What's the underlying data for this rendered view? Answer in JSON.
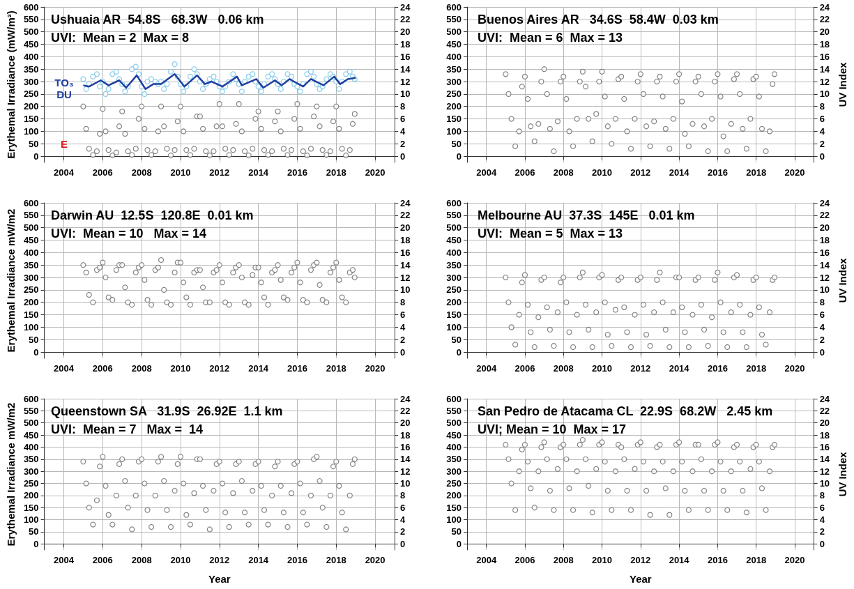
{
  "chart_data": [
    {
      "type": "scatter",
      "title": "Ushuaia AR  54.8S   68.3W   0.06 km",
      "subtitle": "UVI:  Mean = 2  Max = 8",
      "ylabel": "Erythemal Irradiance (mW/m²)",
      "annotations": [
        "TO₃",
        "DU",
        "E"
      ],
      "xlim": [
        2003,
        2021
      ],
      "xticks": [
        2004,
        2006,
        2008,
        2010,
        2012,
        2014,
        2016,
        2018,
        2020
      ],
      "ylim": [
        -25,
        600
      ],
      "yticks": [
        0,
        50,
        100,
        150,
        200,
        250,
        300,
        350,
        400,
        450,
        500,
        550,
        600
      ],
      "y2lim": [
        -1,
        24
      ],
      "y2ticks": [
        0,
        2,
        4,
        6,
        8,
        10,
        12,
        14,
        16,
        18,
        20,
        22,
        24
      ],
      "grid": true,
      "marker": "circle",
      "x": [
        2005,
        2005.15,
        2005.3,
        2005.5,
        2005.7,
        2005.85,
        2006,
        2006.15,
        2006.3,
        2006.5,
        2006.7,
        2006.85,
        2007,
        2007.15,
        2007.3,
        2007.5,
        2007.7,
        2007.85,
        2008,
        2008.15,
        2008.3,
        2008.5,
        2008.7,
        2008.85,
        2009,
        2009.15,
        2009.3,
        2009.5,
        2009.7,
        2009.85,
        2010,
        2010.15,
        2010.3,
        2010.5,
        2010.7,
        2010.85,
        2011,
        2011.15,
        2011.3,
        2011.5,
        2011.7,
        2011.85,
        2012,
        2012.15,
        2012.3,
        2012.5,
        2012.7,
        2012.85,
        2013,
        2013.15,
        2013.3,
        2013.5,
        2013.7,
        2013.85,
        2014,
        2014.15,
        2014.3,
        2014.5,
        2014.7,
        2014.85,
        2015,
        2015.15,
        2015.3,
        2015.5,
        2015.7,
        2015.85,
        2016,
        2016.15,
        2016.3,
        2016.5,
        2016.7,
        2016.85,
        2017,
        2017.15,
        2017.3,
        2017.5,
        2017.7,
        2017.85,
        2018,
        2018.15,
        2018.3,
        2018.5,
        2018.7,
        2018.85,
        2018.95
      ],
      "series": [
        {
          "type": "scatter",
          "color": "#6cc0e8",
          "values": [
            310,
            270,
            290,
            320,
            330,
            280,
            300,
            250,
            270,
            330,
            340,
            310,
            290,
            260,
            280,
            350,
            360,
            330,
            280,
            250,
            300,
            310,
            300,
            290,
            300,
            270,
            290,
            340,
            370,
            320,
            290,
            260,
            280,
            320,
            350,
            330,
            300,
            270,
            290,
            310,
            320,
            300,
            280,
            260,
            280,
            300,
            330,
            310,
            290,
            260,
            300,
            320,
            330,
            300,
            280,
            260,
            290,
            320,
            330,
            310,
            290,
            270,
            300,
            330,
            320,
            290,
            280,
            260,
            290,
            330,
            340,
            320,
            290,
            270,
            280,
            310,
            330,
            320,
            300,
            270,
            300,
            330,
            340,
            320,
            310
          ]
        },
        {
          "type": "line",
          "color": "#1f3fa0",
          "marker": "none",
          "x": [
            2005,
            2005.3,
            2005.9,
            2006.3,
            2006.85,
            2007.2,
            2007.75,
            2008.2,
            2008.6,
            2009.0,
            2009.7,
            2010.2,
            2010.85,
            2011.25,
            2011.6,
            2012.15,
            2012.9,
            2013.15,
            2013.9,
            2014.25,
            2014.85,
            2015.2,
            2015.6,
            2016.3,
            2016.7,
            2017.35,
            2017.9,
            2018.2,
            2018.6,
            2019
          ],
          "values": [
            285,
            280,
            305,
            285,
            305,
            275,
            325,
            270,
            290,
            290,
            330,
            280,
            325,
            290,
            300,
            280,
            320,
            285,
            310,
            275,
            305,
            285,
            310,
            280,
            310,
            285,
            320,
            290,
            310,
            315
          ]
        },
        {
          "type": "scatter",
          "color": "#666666",
          "values": [
            200,
            110,
            30,
            5,
            20,
            90,
            190,
            100,
            25,
            3,
            15,
            120,
            180,
            90,
            20,
            5,
            30,
            150,
            200,
            110,
            25,
            5,
            20,
            100,
            200,
            120,
            30,
            3,
            25,
            140,
            200,
            100,
            25,
            5,
            30,
            160,
            160,
            110,
            20,
            3,
            20,
            120,
            210,
            120,
            30,
            5,
            25,
            130,
            210,
            100,
            20,
            3,
            30,
            150,
            180,
            110,
            25,
            5,
            20,
            140,
            180,
            100,
            30,
            5,
            25,
            150,
            210,
            110,
            20,
            3,
            30,
            160,
            200,
            120,
            25,
            5,
            20,
            140,
            200,
            110,
            30,
            3,
            25,
            130,
            170
          ]
        }
      ]
    },
    {
      "type": "scatter",
      "title": "Buenos Aires AR   34.6S  58.4W  0.03 km",
      "subtitle": "UVI:  Mean = 6  Max = 13",
      "y2label": "UV Index",
      "xlim": [
        2003,
        2021
      ],
      "xticks": [
        2004,
        2006,
        2008,
        2010,
        2012,
        2014,
        2016,
        2018,
        2020
      ],
      "ylim": [
        -25,
        600
      ],
      "yticks": [
        0,
        50,
        100,
        150,
        200,
        250,
        300,
        350,
        400,
        450,
        500,
        550,
        600
      ],
      "y2lim": [
        -1,
        24
      ],
      "y2ticks": [
        0,
        2,
        4,
        6,
        8,
        10,
        12,
        14,
        16,
        18,
        20,
        22,
        24
      ],
      "grid": true,
      "marker": "circle",
      "x": [
        2005,
        2005.15,
        2005.3,
        2005.5,
        2005.7,
        2005.85,
        2006,
        2006.15,
        2006.3,
        2006.5,
        2006.7,
        2006.85,
        2007,
        2007.15,
        2007.3,
        2007.5,
        2007.7,
        2007.85,
        2008,
        2008.15,
        2008.3,
        2008.5,
        2008.7,
        2008.85,
        2009,
        2009.15,
        2009.3,
        2009.5,
        2009.7,
        2009.85,
        2010,
        2010.15,
        2010.3,
        2010.5,
        2010.7,
        2010.85,
        2011,
        2011.15,
        2011.3,
        2011.5,
        2011.7,
        2011.85,
        2012,
        2012.15,
        2012.3,
        2012.5,
        2012.7,
        2012.85,
        2013,
        2013.15,
        2013.3,
        2013.5,
        2013.7,
        2013.85,
        2014,
        2014.15,
        2014.3,
        2014.5,
        2014.7,
        2014.85,
        2015,
        2015.15,
        2015.3,
        2015.5,
        2015.7,
        2015.85,
        2016,
        2016.15,
        2016.3,
        2016.5,
        2016.7,
        2016.85,
        2017,
        2017.15,
        2017.3,
        2017.5,
        2017.7,
        2017.85,
        2018,
        2018.15,
        2018.3,
        2018.5,
        2018.7,
        2018.85,
        2018.95
      ],
      "series": [
        {
          "color": "#666666",
          "values": [
            330,
            250,
            150,
            40,
            100,
            280,
            320,
            230,
            120,
            60,
            130,
            300,
            350,
            250,
            110,
            20,
            140,
            300,
            320,
            230,
            100,
            40,
            150,
            300,
            340,
            280,
            150,
            60,
            170,
            300,
            340,
            240,
            120,
            50,
            150,
            310,
            320,
            230,
            100,
            30,
            150,
            300,
            330,
            250,
            120,
            40,
            140,
            300,
            320,
            240,
            110,
            30,
            150,
            300,
            330,
            220,
            90,
            40,
            130,
            300,
            320,
            250,
            120,
            20,
            150,
            300,
            330,
            240,
            80,
            20,
            130,
            310,
            330,
            250,
            110,
            30,
            150,
            310,
            320,
            240,
            110,
            20,
            100,
            290,
            330
          ]
        }
      ]
    },
    {
      "type": "scatter",
      "title": "Darwin AU  12.5S  120.8E  0.01 km",
      "subtitle": "UVI:  Mean = 10   Max = 14",
      "ylabel": "Erythemal Irradiance mW/m2",
      "xlim": [
        2003,
        2021
      ],
      "xticks": [
        2004,
        2006,
        2008,
        2010,
        2012,
        2014,
        2016,
        2018,
        2020
      ],
      "ylim": [
        -25,
        600
      ],
      "yticks": [
        0,
        50,
        100,
        150,
        200,
        250,
        300,
        350,
        400,
        450,
        500,
        550,
        600
      ],
      "y2lim": [
        -1,
        24
      ],
      "y2ticks": [
        0,
        2,
        4,
        6,
        8,
        10,
        12,
        14,
        16,
        18,
        20,
        22,
        24
      ],
      "grid": true,
      "marker": "circle",
      "x": [
        2005,
        2005.15,
        2005.3,
        2005.5,
        2005.7,
        2005.85,
        2006,
        2006.15,
        2006.3,
        2006.5,
        2006.7,
        2006.85,
        2007,
        2007.15,
        2007.3,
        2007.5,
        2007.7,
        2007.85,
        2008,
        2008.15,
        2008.3,
        2008.5,
        2008.7,
        2008.85,
        2009,
        2009.15,
        2009.3,
        2009.5,
        2009.7,
        2009.85,
        2010,
        2010.15,
        2010.3,
        2010.5,
        2010.7,
        2010.85,
        2011,
        2011.15,
        2011.3,
        2011.5,
        2011.7,
        2011.85,
        2012,
        2012.15,
        2012.3,
        2012.5,
        2012.7,
        2012.85,
        2013,
        2013.15,
        2013.3,
        2013.5,
        2013.7,
        2013.85,
        2014,
        2014.15,
        2014.3,
        2014.5,
        2014.7,
        2014.85,
        2015,
        2015.15,
        2015.3,
        2015.5,
        2015.7,
        2015.85,
        2016,
        2016.15,
        2016.3,
        2016.5,
        2016.7,
        2016.85,
        2017,
        2017.15,
        2017.3,
        2017.5,
        2017.7,
        2017.85,
        2018,
        2018.15,
        2018.3,
        2018.5,
        2018.7,
        2018.85,
        2018.95
      ],
      "series": [
        {
          "color": "#666666",
          "values": [
            350,
            320,
            230,
            200,
            330,
            340,
            360,
            300,
            220,
            210,
            330,
            350,
            350,
            260,
            200,
            190,
            320,
            340,
            350,
            290,
            210,
            190,
            330,
            340,
            370,
            250,
            200,
            190,
            320,
            360,
            360,
            280,
            220,
            190,
            320,
            330,
            330,
            260,
            200,
            200,
            320,
            330,
            350,
            280,
            200,
            190,
            320,
            340,
            350,
            300,
            200,
            190,
            310,
            340,
            340,
            280,
            220,
            190,
            320,
            330,
            350,
            290,
            220,
            210,
            320,
            340,
            360,
            280,
            210,
            200,
            330,
            350,
            360,
            270,
            210,
            200,
            320,
            340,
            360,
            290,
            220,
            200,
            320,
            330,
            300
          ]
        }
      ]
    },
    {
      "type": "scatter",
      "title": "Melbourne AU  37.3S  145E   0.01 km",
      "subtitle": "UVI:  Mean = 5  Max = 13",
      "y2label": "UV Index",
      "xlim": [
        2003,
        2021
      ],
      "xticks": [
        2004,
        2006,
        2008,
        2010,
        2012,
        2014,
        2016,
        2018,
        2020
      ],
      "ylim": [
        -25,
        600
      ],
      "yticks": [
        0,
        50,
        100,
        150,
        200,
        250,
        300,
        350,
        400,
        450,
        500,
        550,
        600
      ],
      "y2lim": [
        -1,
        24
      ],
      "y2ticks": [
        0,
        2,
        4,
        6,
        8,
        10,
        12,
        14,
        16,
        18,
        20,
        22,
        24
      ],
      "grid": true,
      "marker": "circle",
      "x": [
        2005,
        2005.15,
        2005.3,
        2005.5,
        2005.7,
        2005.85,
        2006,
        2006.15,
        2006.3,
        2006.5,
        2006.7,
        2006.85,
        2007,
        2007.15,
        2007.3,
        2007.5,
        2007.7,
        2007.85,
        2008,
        2008.15,
        2008.3,
        2008.5,
        2008.7,
        2008.85,
        2009,
        2009.15,
        2009.3,
        2009.5,
        2009.7,
        2009.85,
        2010,
        2010.15,
        2010.3,
        2010.5,
        2010.7,
        2010.85,
        2011,
        2011.15,
        2011.3,
        2011.5,
        2011.7,
        2011.85,
        2012,
        2012.15,
        2012.3,
        2012.5,
        2012.7,
        2012.85,
        2013,
        2013.15,
        2013.3,
        2013.5,
        2013.7,
        2013.85,
        2014,
        2014.15,
        2014.3,
        2014.5,
        2014.7,
        2014.85,
        2015,
        2015.15,
        2015.3,
        2015.5,
        2015.7,
        2015.85,
        2016,
        2016.15,
        2016.3,
        2016.5,
        2016.7,
        2016.85,
        2017,
        2017.15,
        2017.3,
        2017.5,
        2017.7,
        2017.85,
        2018,
        2018.15,
        2018.3,
        2018.5,
        2018.7,
        2018.85,
        2018.95
      ],
      "series": [
        {
          "color": "#666666",
          "values": [
            300,
            200,
            100,
            30,
            150,
            280,
            310,
            190,
            80,
            20,
            140,
            290,
            300,
            180,
            90,
            25,
            160,
            280,
            300,
            200,
            80,
            20,
            150,
            300,
            320,
            190,
            90,
            20,
            160,
            300,
            310,
            200,
            70,
            25,
            170,
            290,
            300,
            180,
            80,
            20,
            150,
            290,
            300,
            190,
            70,
            25,
            160,
            290,
            320,
            200,
            90,
            20,
            160,
            300,
            300,
            180,
            80,
            20,
            150,
            290,
            300,
            190,
            90,
            25,
            140,
            290,
            320,
            200,
            80,
            20,
            160,
            300,
            310,
            190,
            80,
            20,
            150,
            290,
            300,
            180,
            70,
            30,
            160,
            290,
            300
          ]
        }
      ]
    },
    {
      "type": "scatter",
      "title": "Queenstown SA   31.9S  26.92E  1.1 km",
      "subtitle": "UVI:  Mean = 7   Max =  14",
      "ylabel": "Erythemal Irradiance mW/m2",
      "xlabel": "Year",
      "xlim": [
        2003,
        2021
      ],
      "xticks": [
        2004,
        2006,
        2008,
        2010,
        2012,
        2014,
        2016,
        2018,
        2020
      ],
      "ylim": [
        -25,
        600
      ],
      "yticks": [
        0,
        50,
        100,
        150,
        200,
        250,
        300,
        350,
        400,
        450,
        500,
        550,
        600
      ],
      "y2lim": [
        -1,
        24
      ],
      "y2ticks": [
        0,
        2,
        4,
        6,
        8,
        10,
        12,
        14,
        16,
        18,
        20,
        22,
        24
      ],
      "grid": true,
      "marker": "circle",
      "x": [
        2005,
        2005.15,
        2005.3,
        2005.5,
        2005.7,
        2005.85,
        2006,
        2006.15,
        2006.3,
        2006.5,
        2006.7,
        2006.85,
        2007,
        2007.15,
        2007.3,
        2007.5,
        2007.7,
        2007.85,
        2008,
        2008.15,
        2008.3,
        2008.5,
        2008.7,
        2008.85,
        2009,
        2009.15,
        2009.3,
        2009.5,
        2009.7,
        2009.85,
        2010,
        2010.15,
        2010.3,
        2010.5,
        2010.7,
        2010.85,
        2011,
        2011.15,
        2011.3,
        2011.5,
        2011.7,
        2011.85,
        2012,
        2012.15,
        2012.3,
        2012.5,
        2012.7,
        2012.85,
        2013,
        2013.15,
        2013.3,
        2013.5,
        2013.7,
        2013.85,
        2014,
        2014.15,
        2014.3,
        2014.5,
        2014.7,
        2014.85,
        2015,
        2015.15,
        2015.3,
        2015.5,
        2015.7,
        2015.85,
        2016,
        2016.15,
        2016.3,
        2016.5,
        2016.7,
        2016.85,
        2017,
        2017.15,
        2017.3,
        2017.5,
        2017.7,
        2017.85,
        2018,
        2018.15,
        2018.3,
        2018.5,
        2018.7,
        2018.85,
        2018.95
      ],
      "series": [
        {
          "color": "#666666",
          "values": [
            340,
            250,
            150,
            80,
            180,
            320,
            360,
            240,
            120,
            80,
            200,
            330,
            350,
            260,
            150,
            60,
            200,
            340,
            350,
            250,
            140,
            70,
            200,
            340,
            360,
            260,
            140,
            70,
            220,
            330,
            360,
            250,
            120,
            80,
            210,
            350,
            350,
            240,
            140,
            60,
            220,
            330,
            340,
            250,
            130,
            70,
            210,
            330,
            340,
            260,
            130,
            80,
            220,
            330,
            340,
            240,
            140,
            80,
            200,
            320,
            340,
            240,
            130,
            70,
            210,
            330,
            340,
            250,
            130,
            80,
            200,
            350,
            360,
            260,
            150,
            70,
            200,
            320,
            340,
            240,
            130,
            60,
            200,
            330,
            350
          ]
        }
      ]
    },
    {
      "type": "scatter",
      "title": "San Pedro de Atacama CL  22.9S  68.2W   2.45 km",
      "subtitle": "UVI; Mean = 10  Max = 17",
      "y2label": "UV Index",
      "xlabel": "Year",
      "xlim": [
        2003,
        2021
      ],
      "xticks": [
        2004,
        2006,
        2008,
        2010,
        2012,
        2014,
        2016,
        2018,
        2020
      ],
      "ylim": [
        -25,
        600
      ],
      "yticks": [
        0,
        50,
        100,
        150,
        200,
        250,
        300,
        350,
        400,
        450,
        500,
        550,
        600
      ],
      "y2lim": [
        -1,
        24
      ],
      "y2ticks": [
        0,
        2,
        4,
        6,
        8,
        10,
        12,
        14,
        16,
        18,
        20,
        22,
        24
      ],
      "grid": true,
      "marker": "circle",
      "x": [
        2005,
        2005.15,
        2005.3,
        2005.5,
        2005.7,
        2005.85,
        2006,
        2006.15,
        2006.3,
        2006.5,
        2006.7,
        2006.85,
        2007,
        2007.15,
        2007.3,
        2007.5,
        2007.7,
        2007.85,
        2008,
        2008.15,
        2008.3,
        2008.5,
        2008.7,
        2008.85,
        2009,
        2009.15,
        2009.3,
        2009.5,
        2009.7,
        2009.85,
        2010,
        2010.15,
        2010.3,
        2010.5,
        2010.7,
        2010.85,
        2011,
        2011.15,
        2011.3,
        2011.5,
        2011.7,
        2011.85,
        2012,
        2012.15,
        2012.3,
        2012.5,
        2012.7,
        2012.85,
        2013,
        2013.15,
        2013.3,
        2013.5,
        2013.7,
        2013.85,
        2014,
        2014.15,
        2014.3,
        2014.5,
        2014.7,
        2014.85,
        2015,
        2015.15,
        2015.3,
        2015.5,
        2015.7,
        2015.85,
        2016,
        2016.15,
        2016.3,
        2016.5,
        2016.7,
        2016.85,
        2017,
        2017.15,
        2017.3,
        2017.5,
        2017.7,
        2017.85,
        2018,
        2018.15,
        2018.3,
        2018.5,
        2018.7,
        2018.85,
        2018.95
      ],
      "series": [
        {
          "color": "#666666",
          "values": [
            410,
            350,
            250,
            140,
            300,
            390,
            410,
            340,
            230,
            150,
            300,
            400,
            420,
            350,
            220,
            140,
            310,
            400,
            410,
            350,
            230,
            140,
            300,
            410,
            430,
            350,
            240,
            130,
            310,
            410,
            420,
            340,
            220,
            140,
            300,
            410,
            400,
            350,
            220,
            140,
            310,
            410,
            420,
            340,
            220,
            120,
            300,
            400,
            410,
            340,
            230,
            120,
            300,
            410,
            420,
            340,
            220,
            140,
            300,
            410,
            410,
            350,
            220,
            140,
            300,
            410,
            420,
            340,
            220,
            140,
            300,
            400,
            410,
            340,
            220,
            130,
            310,
            400,
            410,
            340,
            230,
            140,
            300,
            400,
            410
          ]
        }
      ]
    }
  ]
}
